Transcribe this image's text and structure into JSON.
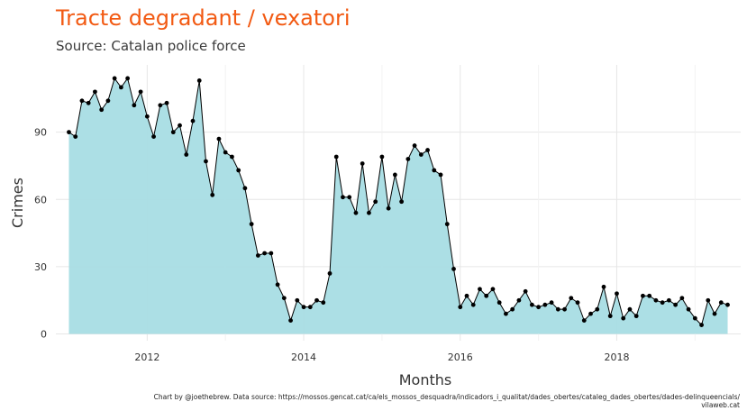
{
  "chart_data": {
    "type": "area",
    "title": "Tracte degradant / vexatori",
    "subtitle": "Source: Catalan police force",
    "xlabel": "Months",
    "ylabel": "Crimes",
    "caption_line1": "Chart by @joethebrew. Data source: https://mossos.gencat.cat/ca/els_mossos_desquadra/indicadors_i_qualitat/dades_obertes/cataleg_dades_obertes/dades-delinqueencials/",
    "caption_line2": "vilaweb.cat",
    "xlim": [
      "2010-11",
      "2019-08"
    ],
    "ylim": [
      -3,
      120
    ],
    "x_ticks": [
      "2012",
      "2014",
      "2016",
      "2018"
    ],
    "y_ticks": [
      "0",
      "30",
      "60",
      "90"
    ],
    "grid": true,
    "fill_color": "#a8dde4",
    "line_color": "#000000",
    "title_color": "#f25a13",
    "x": [
      "2011-01",
      "2011-02",
      "2011-03",
      "2011-04",
      "2011-05",
      "2011-06",
      "2011-07",
      "2011-08",
      "2011-09",
      "2011-10",
      "2011-11",
      "2011-12",
      "2012-01",
      "2012-02",
      "2012-03",
      "2012-04",
      "2012-05",
      "2012-06",
      "2012-07",
      "2012-08",
      "2012-09",
      "2012-10",
      "2012-11",
      "2012-12",
      "2013-01",
      "2013-02",
      "2013-03",
      "2013-04",
      "2013-05",
      "2013-06",
      "2013-07",
      "2013-08",
      "2013-09",
      "2013-10",
      "2013-11",
      "2013-12",
      "2014-01",
      "2014-02",
      "2014-03",
      "2014-04",
      "2014-05",
      "2014-06",
      "2014-07",
      "2014-08",
      "2014-09",
      "2014-10",
      "2014-11",
      "2014-12",
      "2015-01",
      "2015-02",
      "2015-03",
      "2015-04",
      "2015-05",
      "2015-06",
      "2015-07",
      "2015-08",
      "2015-09",
      "2015-10",
      "2015-11",
      "2015-12",
      "2016-01",
      "2016-02",
      "2016-03",
      "2016-04",
      "2016-05",
      "2016-06",
      "2016-07",
      "2016-08",
      "2016-09",
      "2016-10",
      "2016-11",
      "2016-12",
      "2017-01",
      "2017-02",
      "2017-03",
      "2017-04",
      "2017-05",
      "2017-06",
      "2017-07",
      "2017-08",
      "2017-09",
      "2017-10",
      "2017-11",
      "2017-12",
      "2018-01",
      "2018-02",
      "2018-03",
      "2018-04",
      "2018-05",
      "2018-06",
      "2018-07",
      "2018-08",
      "2018-09",
      "2018-10",
      "2018-11",
      "2018-12",
      "2019-01",
      "2019-02",
      "2019-03",
      "2019-04",
      "2019-05",
      "2019-06"
    ],
    "values": [
      90,
      88,
      104,
      103,
      108,
      100,
      104,
      114,
      110,
      114,
      102,
      108,
      97,
      88,
      102,
      103,
      90,
      93,
      80,
      95,
      113,
      77,
      62,
      87,
      81,
      79,
      73,
      65,
      49,
      35,
      36,
      36,
      22,
      16,
      6,
      15,
      12,
      12,
      15,
      14,
      27,
      79,
      61,
      61,
      54,
      76,
      54,
      59,
      79,
      56,
      71,
      59,
      78,
      84,
      80,
      82,
      73,
      71,
      49,
      29,
      12,
      17,
      13,
      20,
      17,
      20,
      14,
      9,
      11,
      15,
      19,
      13,
      12,
      13,
      14,
      11,
      11,
      16,
      14,
      6,
      9,
      11,
      21,
      8,
      18,
      7,
      11,
      8,
      17,
      17,
      15,
      14,
      15,
      13,
      16,
      11,
      7,
      4,
      15,
      9,
      14,
      13
    ]
  }
}
